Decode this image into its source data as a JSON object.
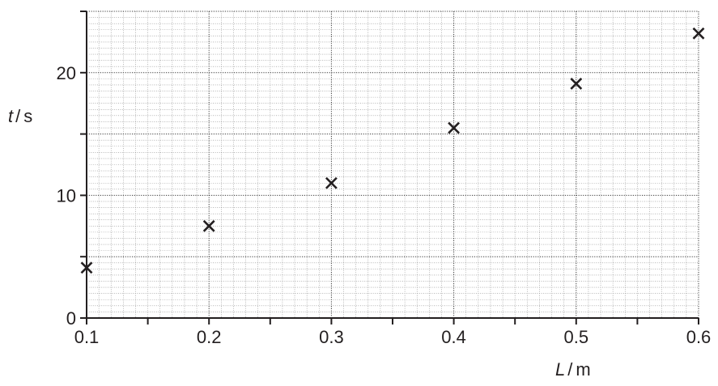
{
  "chart_data": {
    "type": "scatter",
    "title": "",
    "x_symbol": "L",
    "x_unit": "m",
    "y_symbol": "t",
    "y_unit": "s",
    "x_ticks": [
      "0.1",
      "0.2",
      "0.3",
      "0.4",
      "0.5",
      "0.6"
    ],
    "y_ticks": [
      "0",
      "10",
      "20"
    ],
    "xlim": [
      0.1,
      0.6
    ],
    "ylim": [
      0,
      25
    ],
    "grid": true,
    "marker": "cross",
    "series": [
      {
        "x": [
          0.1,
          0.2,
          0.3,
          0.4,
          0.5,
          0.6
        ],
        "y": [
          4.1,
          7.5,
          11.0,
          15.5,
          19.1,
          23.2
        ]
      }
    ],
    "colors": {
      "ink": "#231f20",
      "grid_minor": "#8a8a8a",
      "grid_major": "#3a3a3a"
    }
  }
}
